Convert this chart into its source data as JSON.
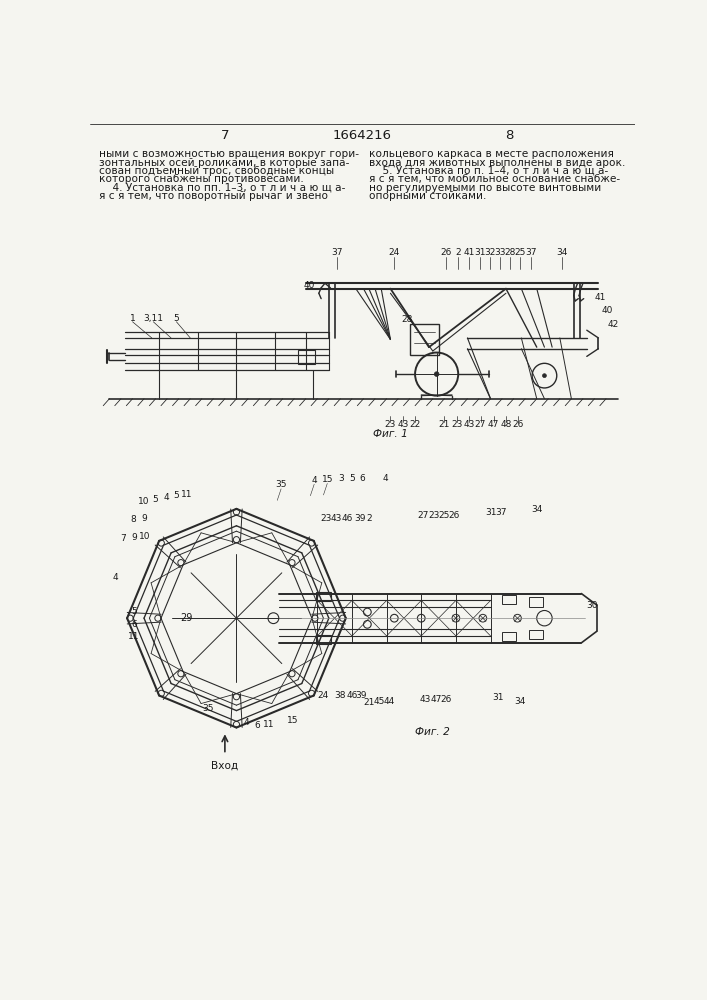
{
  "page_numbers": [
    "7",
    "8"
  ],
  "patent_number": "1664216",
  "text_col1_lines": [
    "ными с возможностью вращения вокруг гори-",
    "зонтальных осей роликами, в которые запа-",
    "сован подъемный трос, свободные концы",
    "которого снабжены противовесами.",
    "    4. Установка по пп. 1–3, о т л и ч а ю щ а-",
    "я с я тем, что поворотный рычаг и звено"
  ],
  "text_col2_lines": [
    "кольцевого каркаса в месте расположения",
    "входа для животных выполнены в виде арок.",
    "    5. Установка по п. 1–4, о т л и ч а ю щ а-",
    "я с я тем, что мобильное основание снабже-",
    "но регулируемыми по высоте винтовыми",
    "опорными стойками."
  ],
  "fig1_caption": "Фиг. 1",
  "fig2_caption": "Фиг. 2",
  "entry_label": "Вход",
  "bg": "#f5f5f0",
  "lc": "#2a2a2a",
  "tc": "#1a1a1a",
  "lfs": 6.5,
  "tfs": 7.6,
  "hfs": 9.5
}
